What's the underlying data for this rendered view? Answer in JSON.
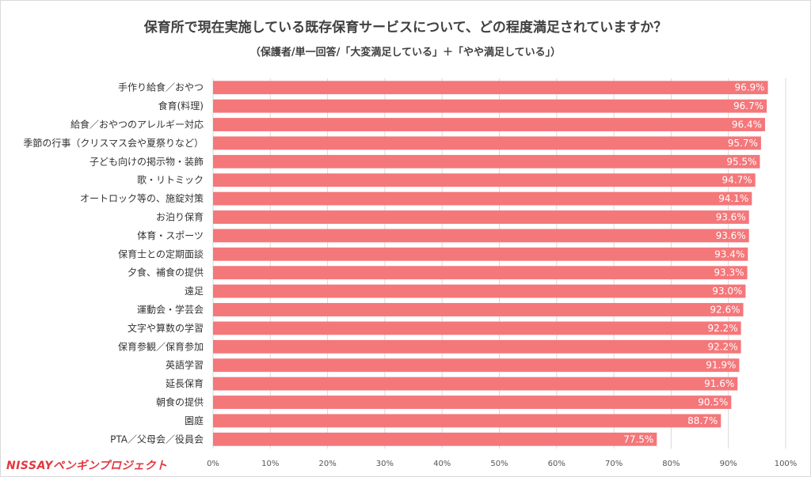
{
  "header": {
    "title": "保育所で現在実施している既存保育サービスについて、どの程度満足されていますか？",
    "subtitle": "（保護者/単一回答/「大変満足している」＋「やや満足している」）"
  },
  "logo": {
    "text": "NISSAYペンギンプロジェクト",
    "color": "#e2373f"
  },
  "colors": {
    "bar": "#f4777a",
    "grid": "#d9d9d9",
    "value_text": "#ffffff"
  },
  "chart_data": {
    "type": "bar",
    "orientation": "horizontal",
    "categories": [
      "手作り給食／おやつ",
      "食育(料理)",
      "給食／おやつのアレルギー対応",
      "季節の行事（クリスマス会や夏祭りなど）",
      "子ども向けの掲示物・装飾",
      "歌・リトミック",
      "オートロック等の、施錠対策",
      "お泊り保育",
      "体育・スポーツ",
      "保育士との定期面談",
      "夕食、補食の提供",
      "遠足",
      "運動会・学芸会",
      "文字や算数の学習",
      "保育参観／保育参加",
      "英語学習",
      "延長保育",
      "朝食の提供",
      "園庭",
      "PTA／父母会／役員会"
    ],
    "values": [
      96.9,
      96.7,
      96.4,
      95.7,
      95.5,
      94.7,
      94.1,
      93.6,
      93.6,
      93.4,
      93.3,
      93.0,
      92.6,
      92.2,
      92.2,
      91.9,
      91.6,
      90.5,
      88.7,
      77.5
    ],
    "value_labels": [
      "96.9%",
      "96.7%",
      "96.4%",
      "95.7%",
      "95.5%",
      "94.7%",
      "94.1%",
      "93.6%",
      "93.6%",
      "93.4%",
      "93.3%",
      "93.0%",
      "92.6%",
      "92.2%",
      "92.2%",
      "91.9%",
      "91.6%",
      "90.5%",
      "88.7%",
      "77.5%"
    ],
    "xlim": [
      0,
      100
    ],
    "ticks": [
      0,
      10,
      20,
      30,
      40,
      50,
      60,
      70,
      80,
      90,
      100
    ],
    "tick_labels": [
      "0%",
      "10%",
      "20%",
      "30%",
      "40%",
      "50%",
      "60%",
      "70%",
      "80%",
      "90%",
      "100%"
    ],
    "grid": true,
    "legend": "none"
  }
}
